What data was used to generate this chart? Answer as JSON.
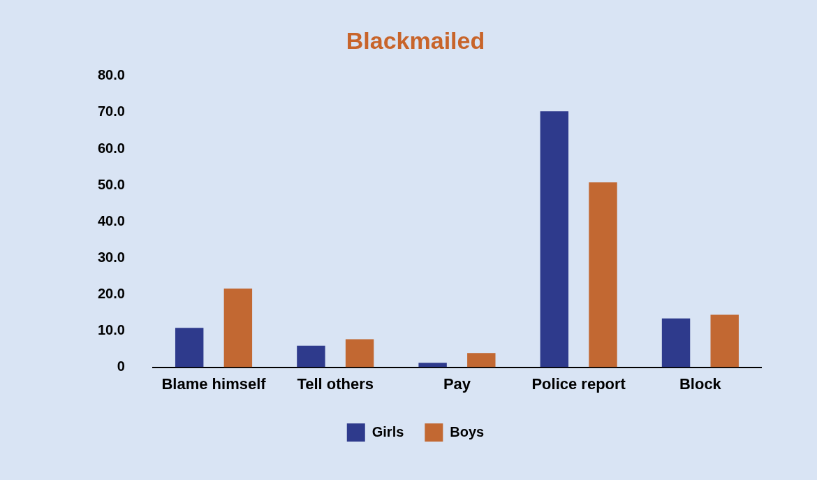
{
  "chart_data": {
    "type": "bar",
    "title": "Blackmailed",
    "categories": [
      "Blame himself",
      "Tell others",
      "Pay",
      "Police report",
      "Block"
    ],
    "series": [
      {
        "name": "Girls",
        "color": "#2e3a8c",
        "values": [
          10.8,
          5.9,
          1.2,
          70.3,
          13.4
        ]
      },
      {
        "name": "Boys",
        "color": "#c26832",
        "values": [
          21.6,
          7.7,
          3.9,
          50.8,
          14.4
        ]
      }
    ],
    "ylim": [
      0,
      80
    ],
    "yticks": [
      0,
      {
        "value": 10,
        "label": "10.0"
      },
      {
        "value": 20,
        "label": "20.0"
      },
      {
        "value": 30,
        "label": "30.0"
      },
      {
        "value": 40,
        "label": "40.0"
      },
      {
        "value": 50,
        "label": "50.0"
      },
      {
        "value": 60,
        "label": "60.0"
      },
      {
        "value": 70,
        "label": "70.0"
      },
      {
        "value": 80,
        "label": "80.0"
      }
    ],
    "grid": false,
    "legend": "bottom"
  }
}
